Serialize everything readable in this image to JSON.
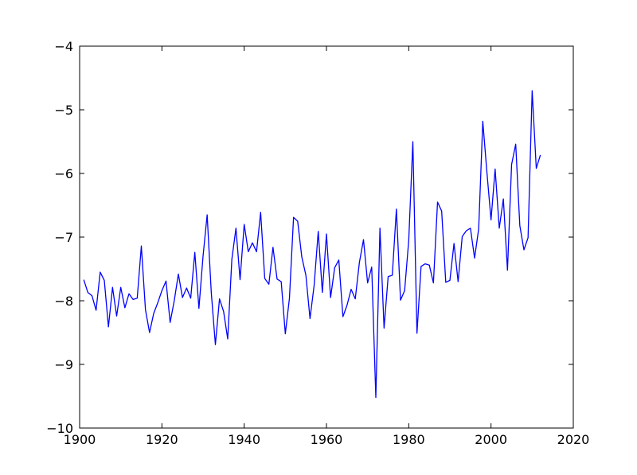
{
  "chart_data": {
    "type": "line",
    "title": "",
    "xlabel": "",
    "ylabel": "",
    "xlim": [
      1900,
      2020
    ],
    "ylim": [
      -10,
      -4
    ],
    "xticks": [
      1900,
      1920,
      1940,
      1960,
      1980,
      2000,
      2020
    ],
    "yticks": [
      -10,
      -9,
      -8,
      -7,
      -6,
      -5,
      -4
    ],
    "xtick_labels": [
      "1900",
      "1920",
      "1940",
      "1960",
      "1980",
      "2000",
      "2020"
    ],
    "ytick_labels": [
      "−10",
      "−9",
      "−8",
      "−7",
      "−6",
      "−5",
      "−4"
    ],
    "grid": false,
    "series": [
      {
        "color": "#0000ff",
        "x": [
          1901,
          1902,
          1903,
          1904,
          1905,
          1906,
          1907,
          1908,
          1909,
          1910,
          1911,
          1912,
          1913,
          1914,
          1915,
          1916,
          1917,
          1918,
          1919,
          1920,
          1921,
          1922,
          1923,
          1924,
          1925,
          1926,
          1927,
          1928,
          1929,
          1930,
          1931,
          1932,
          1933,
          1934,
          1935,
          1936,
          1937,
          1938,
          1939,
          1940,
          1941,
          1942,
          1943,
          1944,
          1945,
          1946,
          1947,
          1948,
          1949,
          1950,
          1951,
          1952,
          1953,
          1954,
          1955,
          1956,
          1957,
          1958,
          1959,
          1960,
          1961,
          1962,
          1963,
          1964,
          1965,
          1966,
          1967,
          1968,
          1969,
          1970,
          1971,
          1972,
          1973,
          1974,
          1975,
          1976,
          1977,
          1978,
          1979,
          1980,
          1981,
          1982,
          1983,
          1984,
          1985,
          1986,
          1987,
          1988,
          1989,
          1990,
          1991,
          1992,
          1993,
          1994,
          1995,
          1996,
          1997,
          1998,
          1999,
          2000,
          2001,
          2002,
          2003,
          2004,
          2005,
          2006,
          2007,
          2008,
          2009,
          2010,
          2011,
          2012
        ],
        "y": [
          -7.67,
          -7.87,
          -7.92,
          -8.15,
          -7.55,
          -7.68,
          -8.41,
          -7.79,
          -8.24,
          -7.79,
          -8.11,
          -7.89,
          -7.98,
          -7.96,
          -7.14,
          -8.14,
          -8.5,
          -8.2,
          -8.03,
          -7.84,
          -7.69,
          -8.34,
          -8.0,
          -7.58,
          -7.95,
          -7.8,
          -7.96,
          -7.24,
          -8.12,
          -7.3,
          -6.65,
          -7.87,
          -8.69,
          -7.97,
          -8.17,
          -8.6,
          -7.35,
          -6.86,
          -7.67,
          -6.8,
          -7.23,
          -7.09,
          -7.23,
          -6.61,
          -7.65,
          -7.74,
          -7.16,
          -7.66,
          -7.7,
          -8.52,
          -7.96,
          -6.69,
          -6.75,
          -7.31,
          -7.6,
          -8.28,
          -7.76,
          -6.91,
          -7.87,
          -6.95,
          -7.95,
          -7.48,
          -7.36,
          -8.25,
          -8.07,
          -7.82,
          -7.97,
          -7.4,
          -7.04,
          -7.72,
          -7.47,
          -9.52,
          -6.86,
          -8.43,
          -7.62,
          -7.6,
          -6.56,
          -7.99,
          -7.84,
          -7.05,
          -5.5,
          -8.51,
          -7.46,
          -7.42,
          -7.44,
          -7.72,
          -6.45,
          -6.59,
          -7.71,
          -7.68,
          -7.1,
          -7.7,
          -6.99,
          -6.9,
          -6.86,
          -7.33,
          -6.87,
          -5.18,
          -5.98,
          -6.73,
          -5.93,
          -6.86,
          -6.4,
          -7.52,
          -5.86,
          -5.54,
          -6.82,
          -7.2,
          -7.01,
          -4.7,
          -5.92,
          -5.71
        ]
      }
    ]
  }
}
